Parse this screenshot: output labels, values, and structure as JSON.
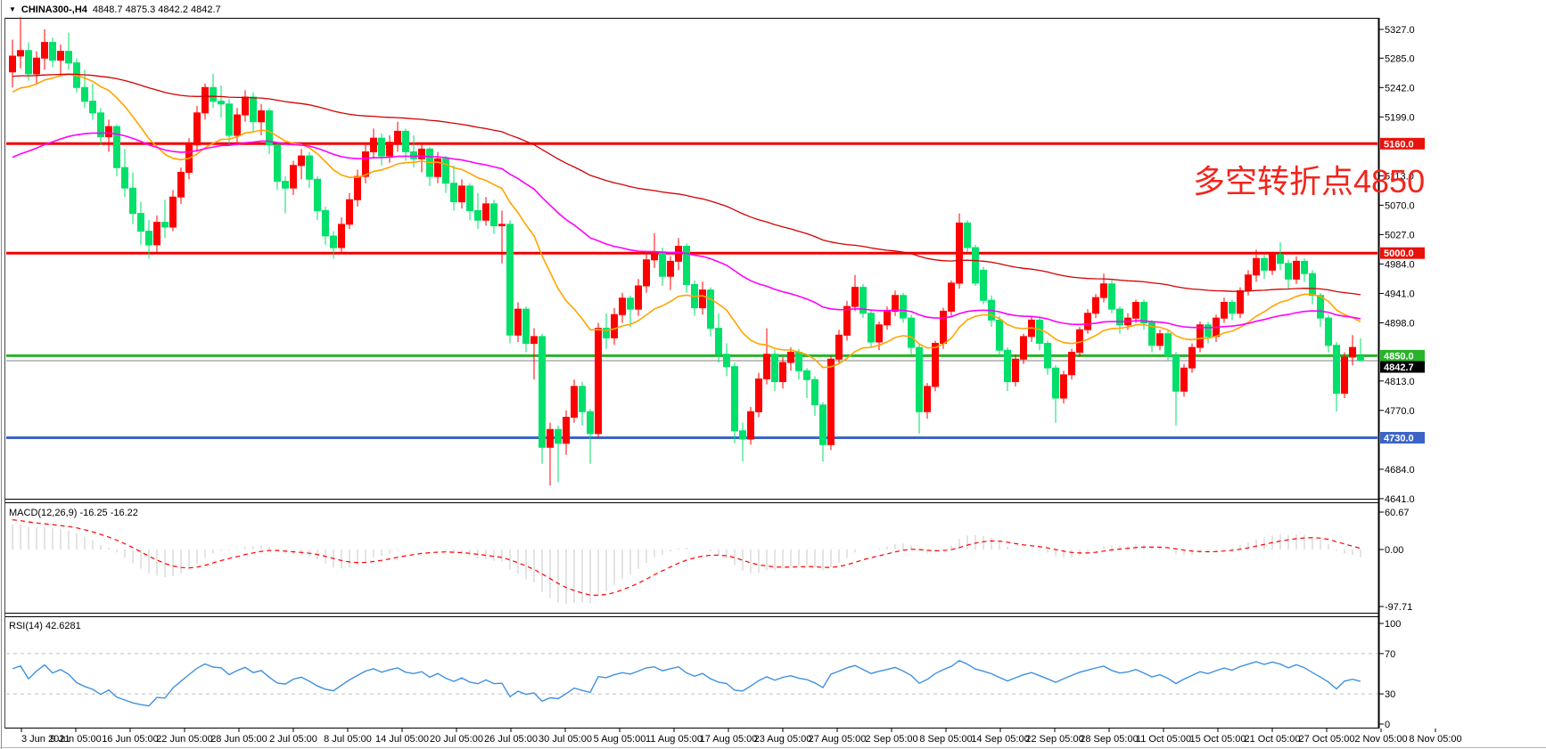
{
  "window": {
    "dropdown_icon": "▼",
    "symbol": "CHINA300-,H4",
    "ohlc_readout": "4848.7 4875.3 4842.2 4842.7"
  },
  "annotation": {
    "text": "多空转折点4850",
    "color": "#f2251d"
  },
  "macd_panel": {
    "label": "MACD(12,26,9)",
    "values_text": "-16.25 -16.22",
    "axis_labels": [
      60.67,
      0.0,
      -97.71
    ]
  },
  "rsi_panel": {
    "label": "RSI(14)",
    "value_text": "42.6281",
    "axis_labels": [
      100,
      70,
      30,
      0
    ],
    "level_lines": [
      70,
      30
    ]
  },
  "colors": {
    "bull": "#ff0000",
    "bear": "#00e06a",
    "ma_fast": "#ffa500",
    "ma_mid": "#ff00ff",
    "ma_slow": "#d40000",
    "hline_red": "#f00000",
    "hline_green": "#28b428",
    "hline_blue": "#3c64c8",
    "current_price_line": "#808080",
    "badge_red": "#e8120c",
    "badge_green": "#28b428",
    "badge_blue": "#3c64c8",
    "badge_black": "#000000",
    "macd_hist": "#c8c8c8",
    "macd_signal": "#ff0000",
    "rsi_line": "#4090e0",
    "rsi_level": "#c0c0c0",
    "frame": "#000000",
    "axis_text": "#000000"
  },
  "y_axis": {
    "visible_labels": [
      5327.0,
      5285.0,
      5242.0,
      5199.0,
      5113.0,
      5070.0,
      5027.0,
      4984.0,
      4941.0,
      4898.0,
      4813.0,
      4770.0,
      4684.0,
      4641.0
    ]
  },
  "price_badges": [
    {
      "text": "5160.0",
      "value": 5160.0,
      "type": "red"
    },
    {
      "text": "5000.0",
      "value": 5000.0,
      "type": "red"
    },
    {
      "text": "4850.0",
      "value": 4850.0,
      "type": "green"
    },
    {
      "text": "4842.7",
      "value": 4842.7,
      "type": "black"
    },
    {
      "text": "4730.0",
      "value": 4730.0,
      "type": "blue"
    }
  ],
  "x_axis": {
    "labels": [
      "3 Jun 2021",
      "9 Jun 05:00",
      "16 Jun 05:00",
      "22 Jun 05:00",
      "28 Jun 05:00",
      "2 Jul 05:00",
      "8 Jul 05:00",
      "14 Jul 05:00",
      "20 Jul 05:00",
      "26 Jul 05:00",
      "30 Jul 05:00",
      "5 Aug 05:00",
      "11 Aug 05:00",
      "17 Aug 05:00",
      "23 Aug 05:00",
      "27 Aug 05:00",
      "2 Sep 05:00",
      "8 Sep 05:00",
      "14 Sep 05:00",
      "22 Sep 05:00",
      "28 Sep 05:00",
      "11 Oct 05:00",
      "15 Oct 05:00",
      "21 Oct 05:00",
      "27 Oct 05:00",
      "2 Nov 05:00",
      "8 Nov 05:00"
    ]
  },
  "chart_data": {
    "type": "candlestick",
    "symbol": "CHINA300-",
    "timeframe": "H4",
    "title": "CHINA300-,H4 4848.7 4875.3 4842.2 4842.7",
    "ylim_main": [
      4641.0,
      5342.0
    ],
    "horizontal_lines": [
      {
        "value": 5160.0,
        "color": "red"
      },
      {
        "value": 5000.0,
        "color": "red"
      },
      {
        "value": 4850.0,
        "color": "green"
      },
      {
        "value": 4842.7,
        "color": "gray-current-price"
      },
      {
        "value": 4730.0,
        "color": "blue"
      }
    ],
    "last_bar": {
      "open": 4848.7,
      "high": 4875.3,
      "low": 4842.2,
      "close": 4842.7
    },
    "macd": {
      "fast": 12,
      "slow": 26,
      "signal": 9,
      "current_macd": -16.25,
      "current_signal": -16.22,
      "axis_range": [
        -97.71,
        60.67
      ]
    },
    "rsi": {
      "period": 14,
      "current": 42.6281,
      "axis_range": [
        0,
        100
      ],
      "levels": [
        70,
        30
      ]
    },
    "moving_averages": [
      {
        "name": "fast",
        "period": 20,
        "seed": 5230,
        "color_key": "ma_fast"
      },
      {
        "name": "mid",
        "period": 60,
        "seed": 5135,
        "color_key": "ma_mid"
      },
      {
        "name": "slow",
        "period": 120,
        "seed": 5258,
        "color_key": "ma_slow"
      }
    ],
    "candles": [
      [
        5265,
        5312,
        5242,
        5288
      ],
      [
        5288,
        5345,
        5270,
        5296
      ],
      [
        5296,
        5308,
        5252,
        5262
      ],
      [
        5262,
        5295,
        5248,
        5285
      ],
      [
        5285,
        5327,
        5268,
        5308
      ],
      [
        5308,
        5315,
        5272,
        5282
      ],
      [
        5282,
        5305,
        5258,
        5295
      ],
      [
        5295,
        5322,
        5268,
        5278
      ],
      [
        5278,
        5285,
        5235,
        5242
      ],
      [
        5242,
        5268,
        5212,
        5222
      ],
      [
        5222,
        5248,
        5195,
        5205
      ],
      [
        5205,
        5212,
        5158,
        5170
      ],
      [
        5170,
        5195,
        5148,
        5185
      ],
      [
        5185,
        5188,
        5112,
        5125
      ],
      [
        5125,
        5152,
        5082,
        5095
      ],
      [
        5095,
        5118,
        5042,
        5058
      ],
      [
        5058,
        5075,
        5012,
        5032
      ],
      [
        5032,
        5048,
        4992,
        5012
      ],
      [
        5012,
        5055,
        5002,
        5045
      ],
      [
        5045,
        5078,
        5022,
        5038
      ],
      [
        5038,
        5092,
        5032,
        5082
      ],
      [
        5082,
        5125,
        5072,
        5118
      ],
      [
        5118,
        5168,
        5108,
        5158
      ],
      [
        5158,
        5215,
        5148,
        5205
      ],
      [
        5205,
        5248,
        5195,
        5242
      ],
      [
        5242,
        5262,
        5212,
        5222
      ],
      [
        5222,
        5245,
        5198,
        5218
      ],
      [
        5218,
        5225,
        5158,
        5172
      ],
      [
        5172,
        5212,
        5162,
        5202
      ],
      [
        5202,
        5238,
        5192,
        5228
      ],
      [
        5228,
        5235,
        5178,
        5192
      ],
      [
        5192,
        5218,
        5172,
        5208
      ],
      [
        5208,
        5212,
        5145,
        5158
      ],
      [
        5158,
        5162,
        5092,
        5105
      ],
      [
        5105,
        5112,
        5058,
        5095
      ],
      [
        5095,
        5135,
        5085,
        5128
      ],
      [
        5128,
        5152,
        5108,
        5142
      ],
      [
        5142,
        5148,
        5095,
        5108
      ],
      [
        5108,
        5112,
        5048,
        5062
      ],
      [
        5062,
        5068,
        5012,
        5025
      ],
      [
        5025,
        5032,
        4992,
        5008
      ],
      [
        5008,
        5052,
        5000,
        5042
      ],
      [
        5042,
        5088,
        5035,
        5078
      ],
      [
        5078,
        5122,
        5068,
        5112
      ],
      [
        5112,
        5158,
        5102,
        5148
      ],
      [
        5148,
        5182,
        5138,
        5168
      ],
      [
        5168,
        5175,
        5128,
        5142
      ],
      [
        5142,
        5172,
        5132,
        5162
      ],
      [
        5162,
        5192,
        5148,
        5178
      ],
      [
        5178,
        5182,
        5135,
        5148
      ],
      [
        5148,
        5172,
        5125,
        5138
      ],
      [
        5138,
        5162,
        5118,
        5152
      ],
      [
        5152,
        5155,
        5098,
        5112
      ],
      [
        5112,
        5148,
        5102,
        5138
      ],
      [
        5138,
        5142,
        5088,
        5102
      ],
      [
        5102,
        5128,
        5062,
        5075
      ],
      [
        5075,
        5108,
        5065,
        5098
      ],
      [
        5098,
        5102,
        5048,
        5062
      ],
      [
        5062,
        5088,
        5035,
        5048
      ],
      [
        5048,
        5082,
        5040,
        5072
      ],
      [
        5072,
        5078,
        5028,
        5040
      ],
      [
        5040,
        5062,
        4985,
        5042
      ],
      [
        5042,
        5048,
        4868,
        4880
      ],
      [
        4880,
        4928,
        4870,
        4918
      ],
      [
        4918,
        4922,
        4855,
        4868
      ],
      [
        4868,
        4890,
        4815,
        4878
      ],
      [
        4878,
        4882,
        4692,
        4716
      ],
      [
        4716,
        4752,
        4660,
        4742
      ],
      [
        4742,
        4748,
        4665,
        4722
      ],
      [
        4722,
        4770,
        4705,
        4760
      ],
      [
        4760,
        4815,
        4752,
        4805
      ],
      [
        4805,
        4812,
        4748,
        4768
      ],
      [
        4768,
        4772,
        4692,
        4736
      ],
      [
        4736,
        4898,
        4730,
        4890
      ],
      [
        4890,
        4912,
        4860,
        4876
      ],
      [
        4876,
        4920,
        4866,
        4910
      ],
      [
        4910,
        4942,
        4898,
        4934
      ],
      [
        4934,
        4938,
        4892,
        4918
      ],
      [
        4918,
        4962,
        4908,
        4952
      ],
      [
        4952,
        4998,
        4942,
        4990
      ],
      [
        4990,
        5029,
        4978,
        5002
      ],
      [
        5002,
        5008,
        4952,
        4966
      ],
      [
        4966,
        4995,
        4946,
        4988
      ],
      [
        4988,
        5022,
        4975,
        5010
      ],
      [
        5010,
        5014,
        4942,
        4954
      ],
      [
        4954,
        4960,
        4908,
        4920
      ],
      [
        4920,
        4958,
        4910,
        4946
      ],
      [
        4946,
        4950,
        4878,
        4890
      ],
      [
        4890,
        4912,
        4840,
        4852
      ],
      [
        4852,
        4868,
        4820,
        4834
      ],
      [
        4834,
        4840,
        4722,
        4740
      ],
      [
        4740,
        4752,
        4695,
        4728
      ],
      [
        4728,
        4775,
        4720,
        4768
      ],
      [
        4768,
        4825,
        4760,
        4816
      ],
      [
        4816,
        4890,
        4808,
        4852
      ],
      [
        4852,
        4858,
        4798,
        4812
      ],
      [
        4812,
        4848,
        4802,
        4840
      ],
      [
        4840,
        4862,
        4828,
        4855
      ],
      [
        4855,
        4860,
        4815,
        4828
      ],
      [
        4828,
        4832,
        4788,
        4815
      ],
      [
        4815,
        4820,
        4762,
        4778
      ],
      [
        4778,
        4782,
        4695,
        4720
      ],
      [
        4720,
        4850,
        4712,
        4845
      ],
      [
        4845,
        4888,
        4838,
        4880
      ],
      [
        4880,
        4930,
        4872,
        4922
      ],
      [
        4922,
        4968,
        4915,
        4950
      ],
      [
        4950,
        4955,
        4905,
        4912
      ],
      [
        4912,
        4918,
        4862,
        4870
      ],
      [
        4870,
        4900,
        4858,
        4895
      ],
      [
        4895,
        4922,
        4888,
        4915
      ],
      [
        4915,
        4945,
        4908,
        4938
      ],
      [
        4938,
        4942,
        4898,
        4905
      ],
      [
        4905,
        4910,
        4852,
        4862
      ],
      [
        4862,
        4868,
        4736,
        4768
      ],
      [
        4768,
        4810,
        4758,
        4805
      ],
      [
        4805,
        4872,
        4798,
        4868
      ],
      [
        4868,
        4920,
        4860,
        4915
      ],
      [
        4915,
        4960,
        4908,
        4956
      ],
      [
        4956,
        5058,
        4948,
        5044
      ],
      [
        5044,
        5048,
        5002,
        5008
      ],
      [
        5008,
        5012,
        4952,
        4956
      ],
      [
        4975,
        4980,
        4925,
        4931
      ],
      [
        4931,
        4938,
        4892,
        4902
      ],
      [
        4902,
        4908,
        4848,
        4858
      ],
      [
        4858,
        4862,
        4798,
        4812
      ],
      [
        4812,
        4852,
        4805,
        4845
      ],
      [
        4845,
        4882,
        4838,
        4878
      ],
      [
        4878,
        4908,
        4870,
        4902
      ],
      [
        4902,
        4906,
        4858,
        4868
      ],
      [
        4868,
        4872,
        4822,
        4832
      ],
      [
        4832,
        4836,
        4752,
        4788
      ],
      [
        4788,
        4828,
        4780,
        4822
      ],
      [
        4822,
        4860,
        4815,
        4855
      ],
      [
        4855,
        4892,
        4848,
        4888
      ],
      [
        4888,
        4918,
        4882,
        4912
      ],
      [
        4912,
        4940,
        4905,
        4935
      ],
      [
        4935,
        4970,
        4928,
        4955
      ],
      [
        4955,
        4960,
        4912,
        4918
      ],
      [
        4918,
        4922,
        4882,
        4895
      ],
      [
        4895,
        4912,
        4888,
        4905
      ],
      [
        4905,
        4932,
        4898,
        4928
      ],
      [
        4928,
        4932,
        4888,
        4898
      ],
      [
        4898,
        4902,
        4855,
        4865
      ],
      [
        4865,
        4888,
        4858,
        4882
      ],
      [
        4882,
        4886,
        4842,
        4850
      ],
      [
        4850,
        4855,
        4748,
        4798
      ],
      [
        4798,
        4838,
        4790,
        4832
      ],
      [
        4832,
        4868,
        4825,
        4862
      ],
      [
        4862,
        4900,
        4855,
        4895
      ],
      [
        4895,
        4900,
        4868,
        4878
      ],
      [
        4878,
        4910,
        4870,
        4905
      ],
      [
        4905,
        4935,
        4898,
        4928
      ],
      [
        4928,
        4932,
        4902,
        4912
      ],
      [
        4912,
        4950,
        4905,
        4945
      ],
      [
        4945,
        4975,
        4938,
        4968
      ],
      [
        4968,
        5005,
        4958,
        4992
      ],
      [
        4992,
        4998,
        4962,
        4975
      ],
      [
        4975,
        5002,
        4968,
        4998
      ],
      [
        4998,
        5016,
        4975,
        4985
      ],
      [
        4985,
        4990,
        4948,
        4962
      ],
      [
        4962,
        4995,
        4955,
        4988
      ],
      [
        4988,
        4992,
        4958,
        4970
      ],
      [
        4970,
        4975,
        4925,
        4938
      ],
      [
        4938,
        4942,
        4892,
        4905
      ],
      [
        4905,
        4910,
        4855,
        4865
      ],
      [
        4865,
        4870,
        4768,
        4795
      ],
      [
        4795,
        4855,
        4788,
        4848
      ],
      [
        4848,
        4880,
        4836,
        4862
      ],
      [
        4848.7,
        4875.3,
        4842.2,
        4842.7
      ]
    ]
  }
}
